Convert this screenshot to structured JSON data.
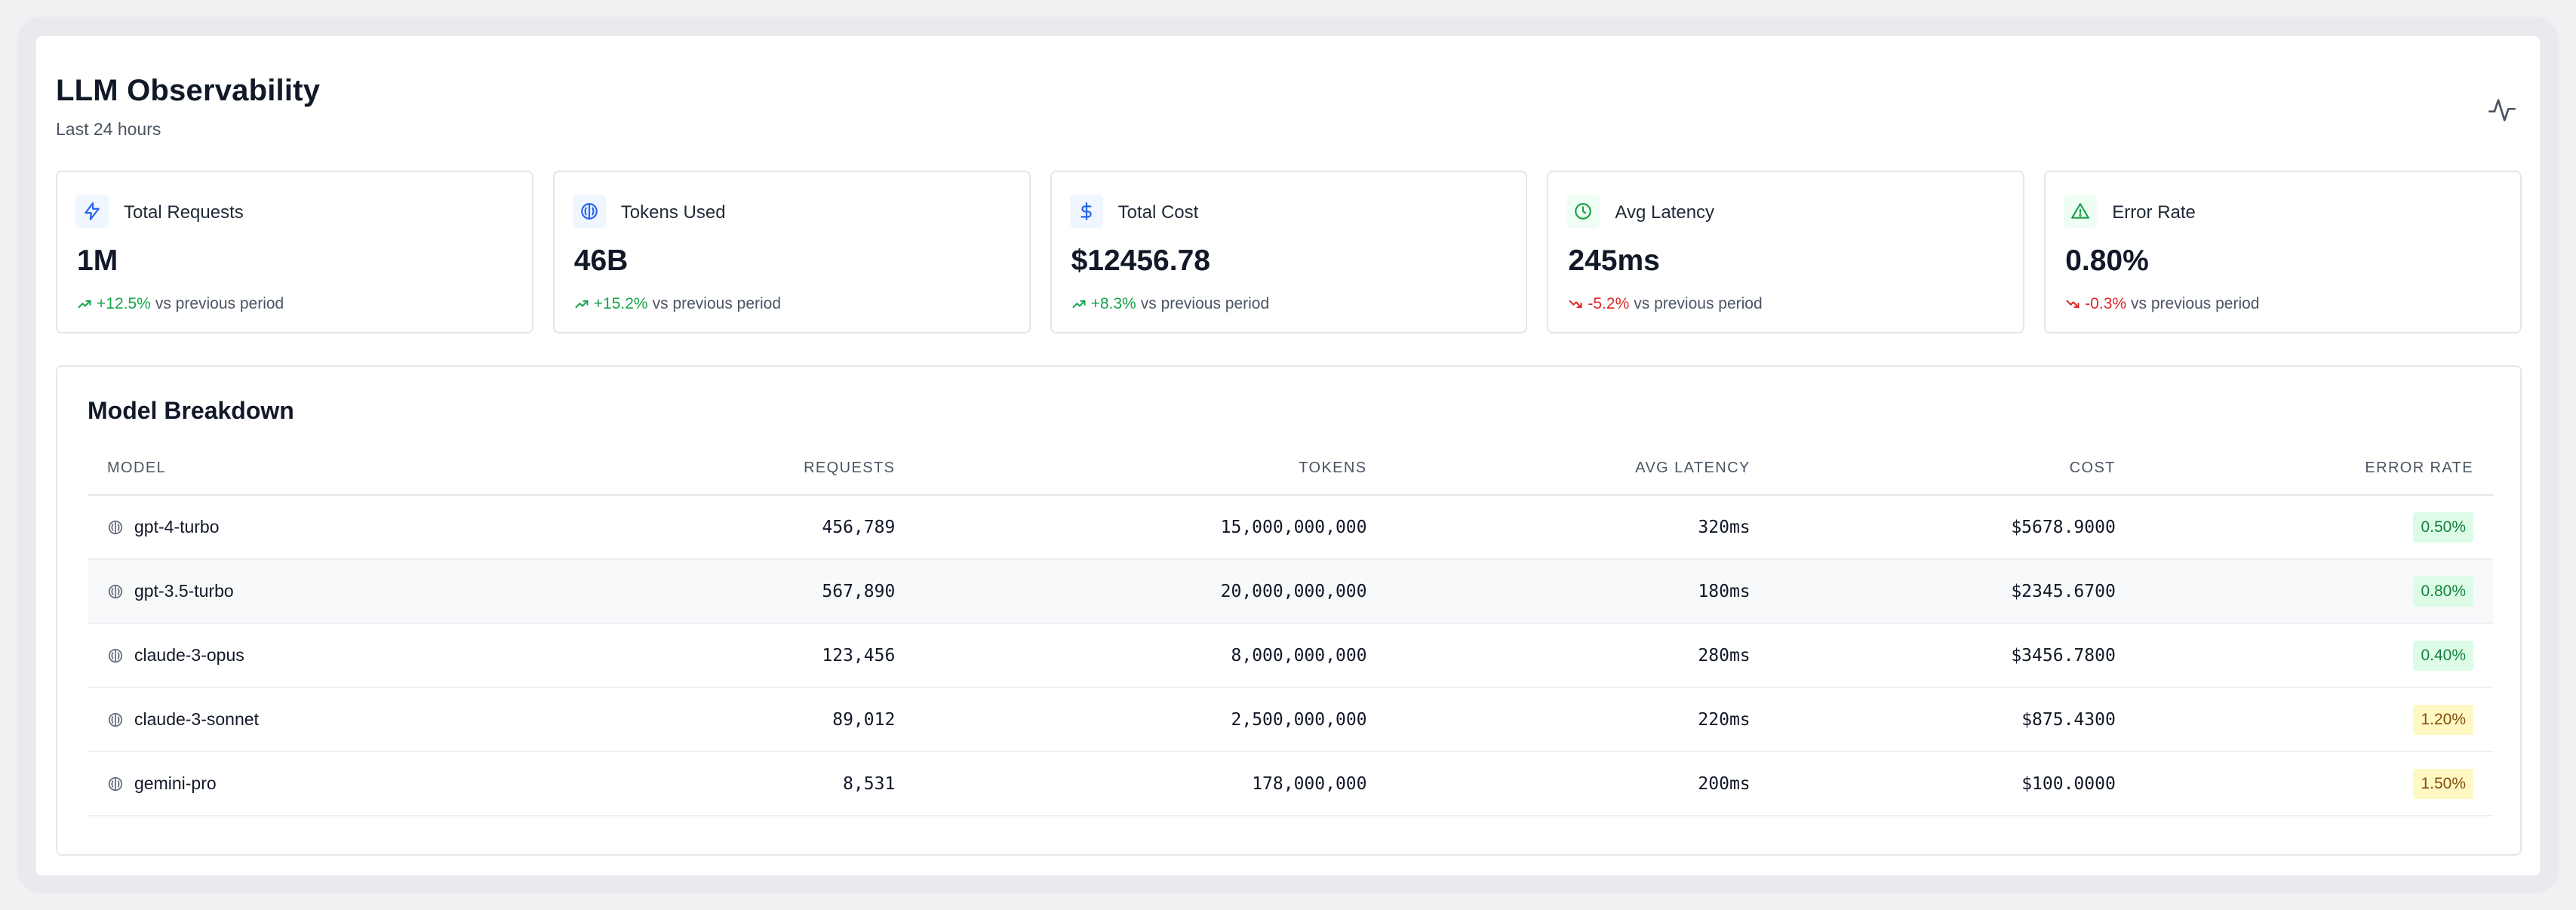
{
  "header": {
    "title": "LLM Observability",
    "subtitle": "Last 24 hours",
    "activity_icon": "activity-pulse-icon"
  },
  "metrics": [
    {
      "label": "Total Requests",
      "value": "1M",
      "change": "+12.5%",
      "direction": "up",
      "suffix": "vs previous period",
      "icon": "lightning-icon",
      "icon_color": "#2563eb",
      "icon_bg": "#eff6ff"
    },
    {
      "label": "Tokens Used",
      "value": "46B",
      "change": "+15.2%",
      "direction": "up",
      "suffix": "vs previous period",
      "icon": "brain-icon",
      "icon_color": "#2563eb",
      "icon_bg": "#eff6ff"
    },
    {
      "label": "Total Cost",
      "value": "$12456.78",
      "change": "+8.3%",
      "direction": "up",
      "suffix": "vs previous period",
      "icon": "dollar-icon",
      "icon_color": "#2563eb",
      "icon_bg": "#eff6ff"
    },
    {
      "label": "Avg Latency",
      "value": "245ms",
      "change": "-5.2%",
      "direction": "down",
      "suffix": "vs previous period",
      "icon": "clock-icon",
      "icon_color": "#16a34a",
      "icon_bg": "#f0fdf4"
    },
    {
      "label": "Error Rate",
      "value": "0.80%",
      "change": "-0.3%",
      "direction": "down",
      "suffix": "vs previous period",
      "icon": "warning-icon",
      "icon_color": "#16a34a",
      "icon_bg": "#f0fdf4"
    }
  ],
  "breakdown": {
    "title": "Model Breakdown",
    "columns": [
      "MODEL",
      "REQUESTS",
      "TOKENS",
      "AVG LATENCY",
      "COST",
      "ERROR RATE"
    ],
    "rows": [
      {
        "model": "gpt-4-turbo",
        "requests": "456,789",
        "tokens": "15,000,000,000",
        "latency": "320ms",
        "cost": "$5678.9000",
        "error_rate": "0.50%",
        "level": "green"
      },
      {
        "model": "gpt-3.5-turbo",
        "requests": "567,890",
        "tokens": "20,000,000,000",
        "latency": "180ms",
        "cost": "$2345.6700",
        "error_rate": "0.80%",
        "level": "green"
      },
      {
        "model": "claude-3-opus",
        "requests": "123,456",
        "tokens": "8,000,000,000",
        "latency": "280ms",
        "cost": "$3456.7800",
        "error_rate": "0.40%",
        "level": "green"
      },
      {
        "model": "claude-3-sonnet",
        "requests": "89,012",
        "tokens": "2,500,000,000",
        "latency": "220ms",
        "cost": "$875.4300",
        "error_rate": "1.20%",
        "level": "yellow"
      },
      {
        "model": "gemini-pro",
        "requests": "8,531",
        "tokens": "178,000,000",
        "latency": "200ms",
        "cost": "$100.0000",
        "error_rate": "1.50%",
        "level": "yellow"
      }
    ]
  },
  "colors": {
    "positive": "#16a34a",
    "negative": "#dc2626",
    "accent": "#2563eb"
  }
}
